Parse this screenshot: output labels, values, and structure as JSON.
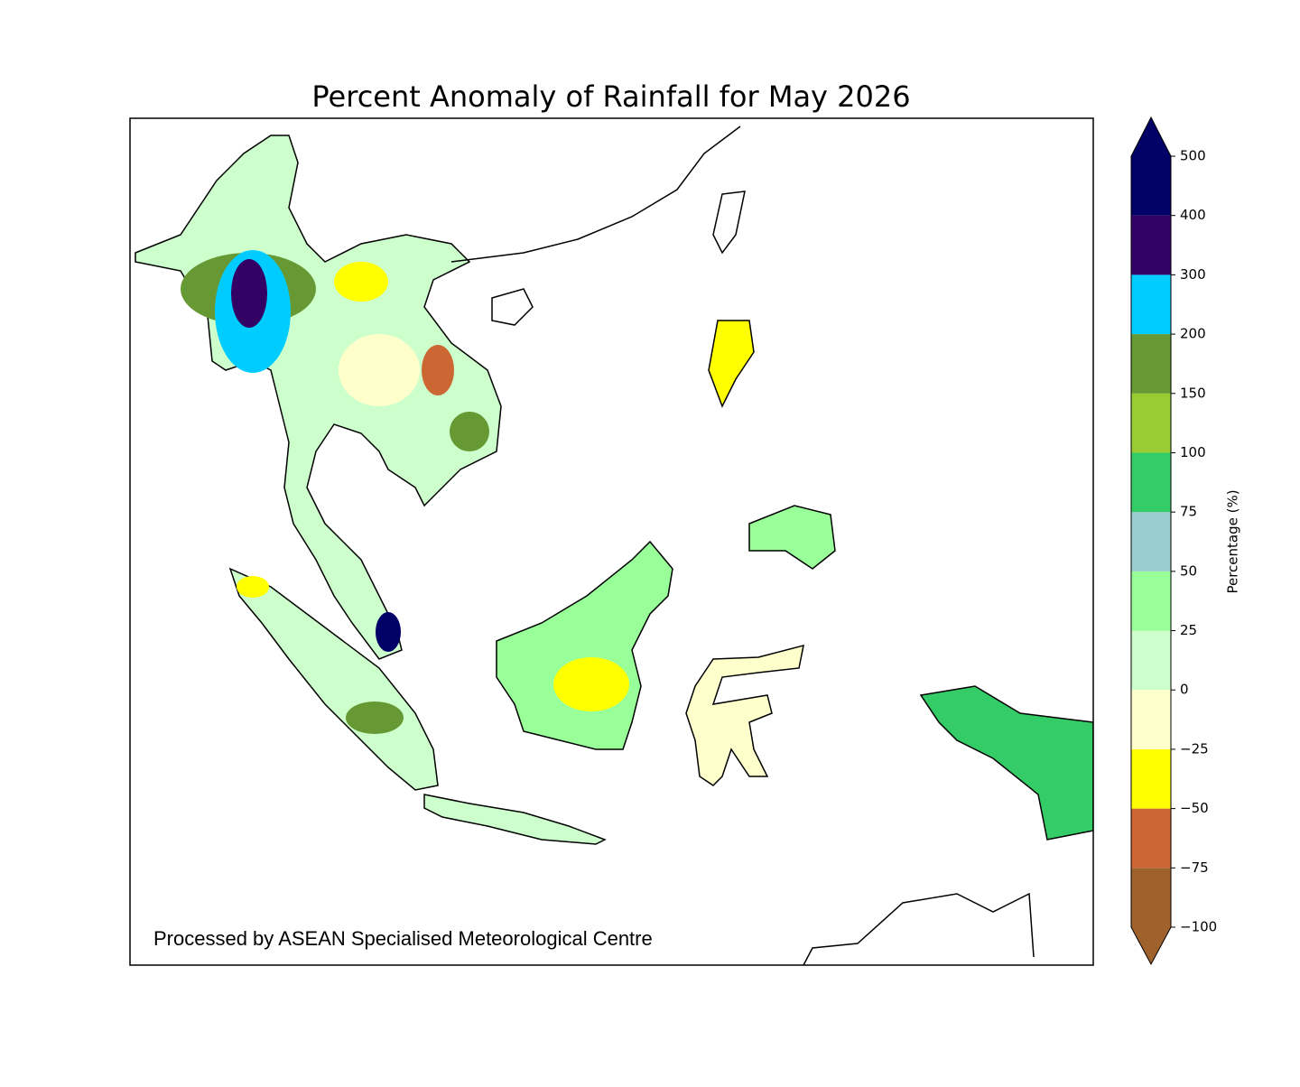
{
  "title": "Percent Anomaly of Rainfall for May 2026",
  "credit": "Processed by ASEAN Specialised Meteorological Centre",
  "colorbar": {
    "label": "Percentage (%)",
    "ticks": [
      {
        "value": -100,
        "label": "−100"
      },
      {
        "value": -75,
        "label": "−75"
      },
      {
        "value": -50,
        "label": "−50"
      },
      {
        "value": -25,
        "label": "−25"
      },
      0,
      25,
      50,
      75,
      100,
      150,
      200,
      300,
      400,
      500
    ],
    "colors": [
      "#a0622d",
      "#cc6633",
      "#ffff00",
      "#ffffcc",
      "#ccffcc",
      "#99ff99",
      "#99cccc",
      "#33cc66",
      "#99cc33",
      "#669933",
      "#00ccff",
      "#330066",
      "#000066"
    ],
    "under_color": "#a0622d",
    "over_color": "#000066"
  }
}
